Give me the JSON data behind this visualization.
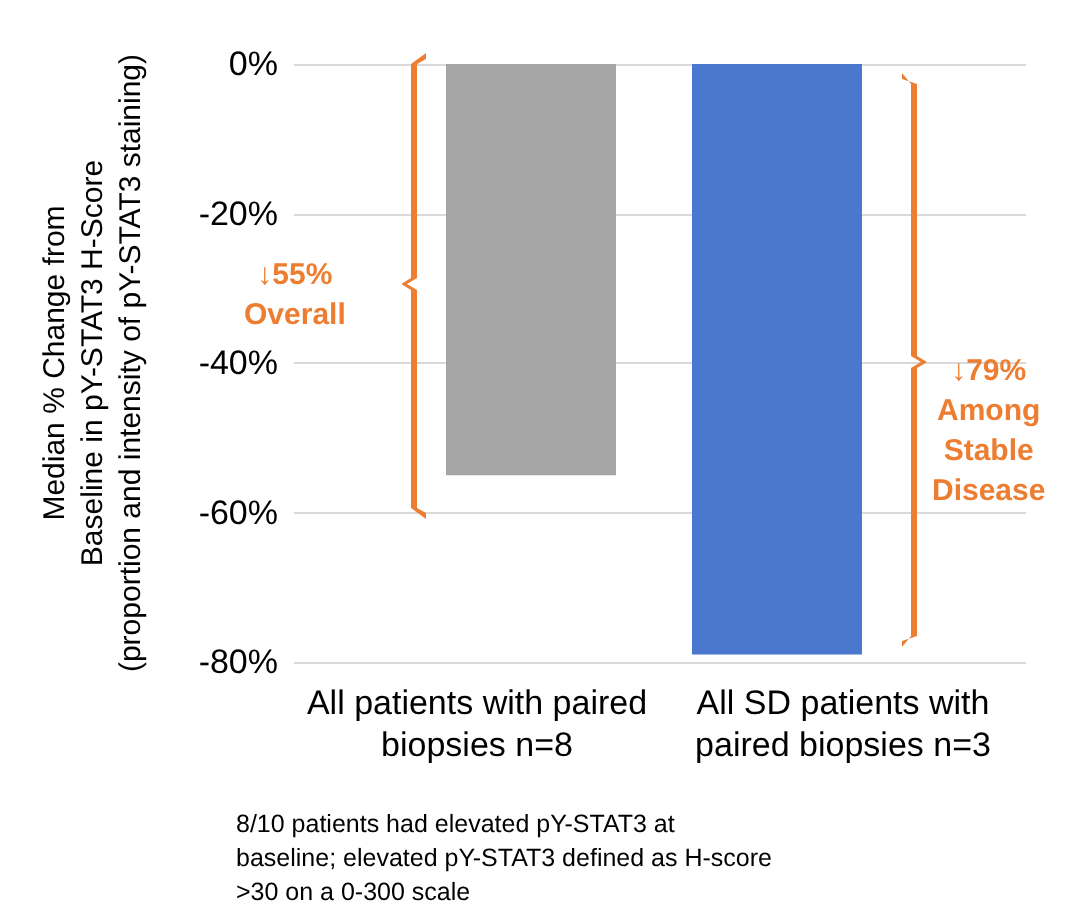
{
  "chart_data": {
    "type": "bar",
    "ylabel": "Median % Change from\nBaseline in pY-STAT3 H-Score\n(proportion and intensity of pY-STAT3 staining)",
    "categories": [
      "All patients with paired\nbiopsies n=8",
      "All SD patients with\npaired biopsies n=3"
    ],
    "values": [
      -55,
      -79
    ],
    "colors": [
      "#a5a5a5",
      "#4a78cf"
    ],
    "ylim": [
      -80,
      0
    ],
    "yticks": [
      {
        "value": -80,
        "label": "-80%"
      },
      {
        "value": -60,
        "label": "-60%"
      },
      {
        "value": -40,
        "label": "-40%"
      },
      {
        "value": -20,
        "label": "-20%"
      },
      {
        "value": 0,
        "label": "0%"
      }
    ],
    "grid": "y",
    "annotations": [
      "↓55%\nOverall",
      "↓79%\nAmong\nStable\nDisease",
      "8/10 patients had elevated pY-STAT3 at\nbaseline; elevated pY-STAT3 defined as H-score\n>30 on a 0-300 scale"
    ]
  }
}
